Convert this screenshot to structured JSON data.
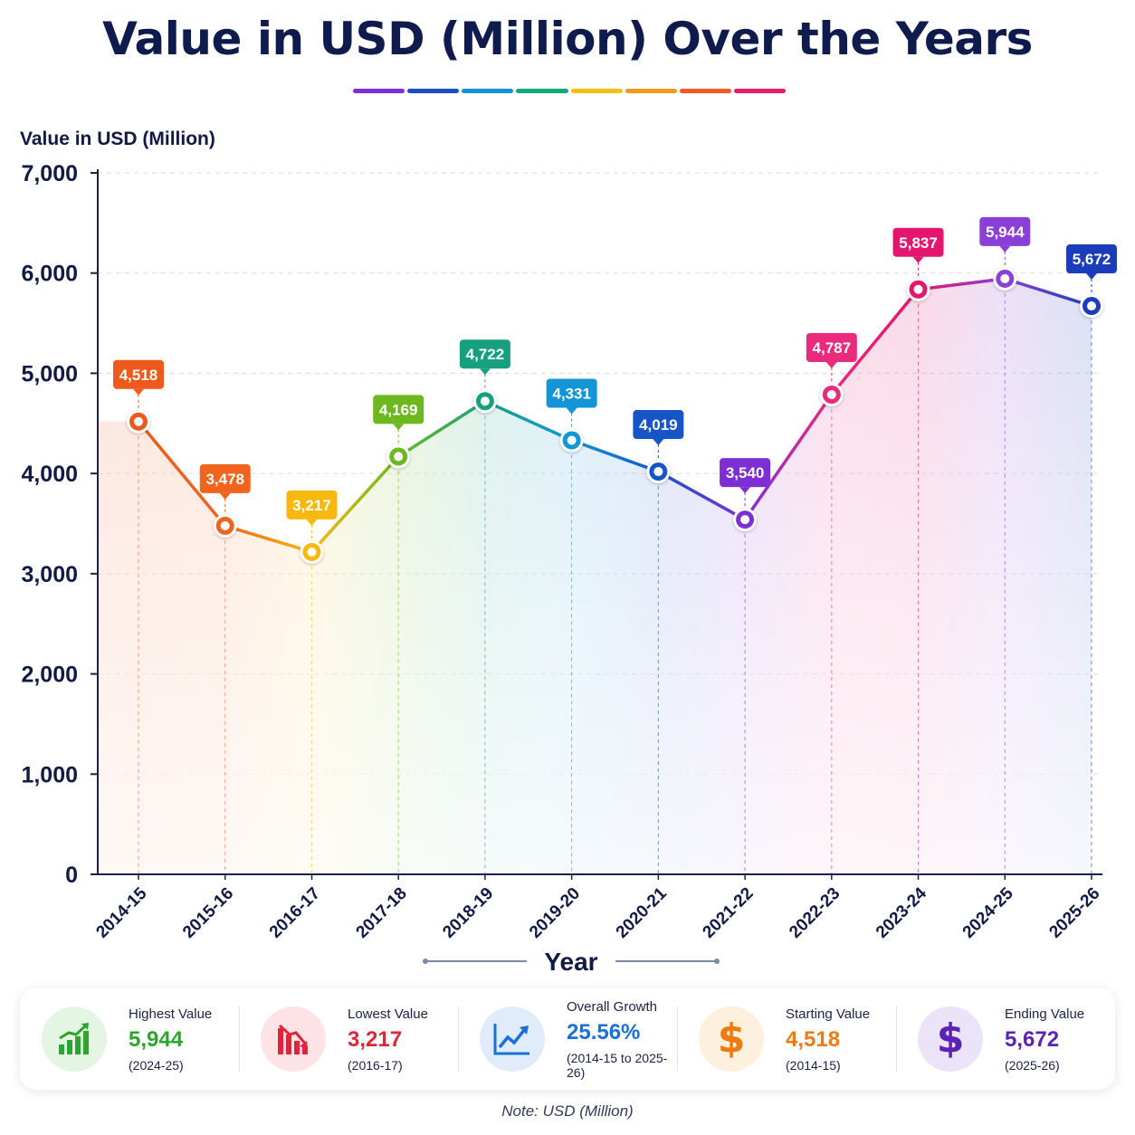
{
  "title": "Value in USD (Million) Over the Years",
  "title_underline_colors": [
    "#7e2ed6",
    "#1d4fc4",
    "#1592d4",
    "#16a87d",
    "#f5bf10",
    "#f39a1a",
    "#f05a24",
    "#e81e6b"
  ],
  "chart_data": {
    "type": "line",
    "title": "Value in USD (Million) Over the Years",
    "xlabel": "Year",
    "ylabel": "Value in USD (Million)",
    "ylim": [
      0,
      7000
    ],
    "yticks": [
      0,
      1000,
      2000,
      3000,
      4000,
      5000,
      6000,
      7000
    ],
    "ytick_labels": [
      "0",
      "1,000",
      "2,000",
      "3,000",
      "4,000",
      "5,000",
      "6,000",
      "7,000"
    ],
    "grid": true,
    "categories": [
      "2014-15",
      "2015-16",
      "2016-17",
      "2017-18",
      "2018-19",
      "2019-20",
      "2020-21",
      "2021-22",
      "2022-23",
      "2023-24",
      "2024-25",
      "2025-26"
    ],
    "values": [
      4518,
      3478,
      3217,
      4169,
      4722,
      4331,
      4019,
      3540,
      4787,
      5837,
      5944,
      5672
    ],
    "data_labels": [
      "4,518",
      "3,478",
      "3,217",
      "4,169",
      "4,722",
      "4,331",
      "4,019",
      "3,540",
      "4,787",
      "5,837",
      "5,944",
      "5,672"
    ],
    "point_colors": [
      "#ee5a1c",
      "#f0641e",
      "#f7b80f",
      "#6cb81e",
      "#17a07e",
      "#1495d8",
      "#1754c6",
      "#7d2fd6",
      "#ea2a7c",
      "#e3156e",
      "#8b3fd9",
      "#1b3dba"
    ]
  },
  "summary": {
    "cards": [
      {
        "label": "Highest Value",
        "value": "5,944",
        "sub": "(2024-25)",
        "icon": "bar-chart-up-icon",
        "color": "#2aa52e",
        "bg": "#e4f5e3"
      },
      {
        "label": "Lowest Value",
        "value": "3,217",
        "sub": "(2016-17)",
        "icon": "bar-chart-down-icon",
        "color": "#e02538",
        "bg": "#fde3e5"
      },
      {
        "label": "Overall Growth",
        "value": "25.56%",
        "sub": "(2014-15 to 2025-26)",
        "icon": "trend-line-icon",
        "color": "#1a6fd8",
        "bg": "#e0ecfb"
      },
      {
        "label": "Starting Value",
        "value": "4,518",
        "sub": "(2014-15)",
        "icon": "dollar-icon",
        "color": "#f07a10",
        "bg": "#fdf0dc"
      },
      {
        "label": "Ending Value",
        "value": "5,672",
        "sub": "(2025-26)",
        "icon": "dollar-icon",
        "color": "#5b22b8",
        "bg": "#ebe3f8"
      }
    ]
  },
  "note": "Note: USD (Million)"
}
